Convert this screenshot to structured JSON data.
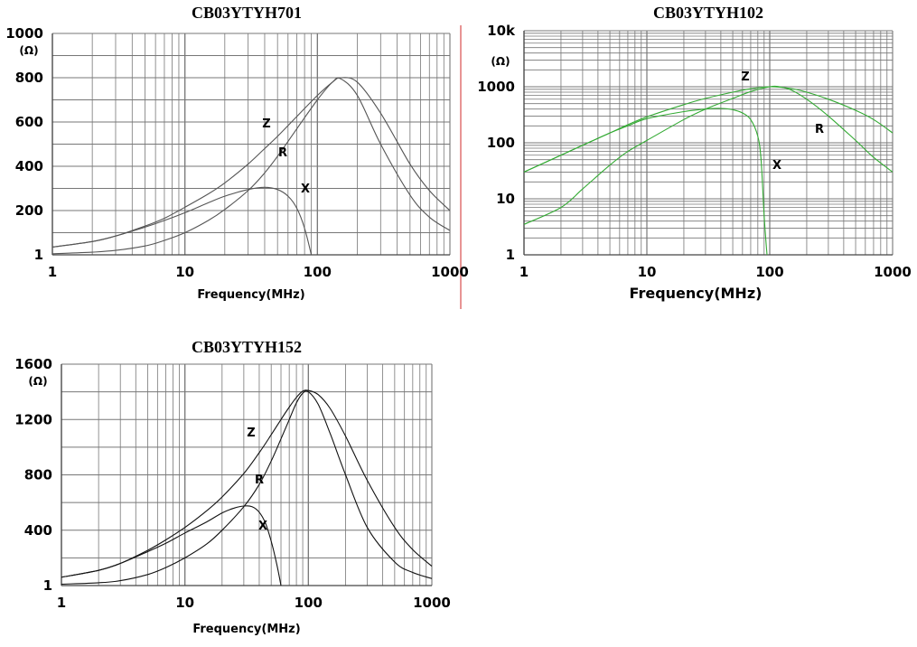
{
  "chart_data": [
    {
      "type": "line",
      "title": "CB03YTYH701",
      "xlabel": "Frequency(MHz)",
      "ylabel_unit": "(Ω)",
      "x_scale": "log",
      "xlim": [
        1,
        1000
      ],
      "xticks": [
        "1",
        "10",
        "100",
        "1000"
      ],
      "y_scale": "linear",
      "ylim": [
        0,
        1000
      ],
      "yticks": [
        {
          "value": 0,
          "label": "1"
        },
        {
          "value": 200,
          "label": "200"
        },
        {
          "value": 400,
          "label": "400"
        },
        {
          "value": 600,
          "label": "600"
        },
        {
          "value": 800,
          "label": "800"
        },
        {
          "value": 1000,
          "label": "1000"
        }
      ],
      "line_color": "#555555",
      "series": [
        {
          "name": "Z",
          "x": [
            1,
            2,
            3,
            5,
            7,
            10,
            15,
            20,
            30,
            40,
            50,
            70,
            100,
            130,
            150,
            200,
            300,
            500,
            700,
            1000
          ],
          "y": [
            35,
            60,
            85,
            130,
            165,
            215,
            275,
            325,
            410,
            480,
            535,
            625,
            720,
            780,
            800,
            780,
            640,
            410,
            290,
            200
          ]
        },
        {
          "name": "R",
          "x": [
            1,
            2,
            3,
            5,
            7,
            10,
            15,
            20,
            30,
            40,
            50,
            70,
            100,
            130,
            150,
            200,
            300,
            500,
            700,
            1000
          ],
          "y": [
            5,
            12,
            20,
            40,
            65,
            100,
            155,
            205,
            290,
            370,
            445,
            570,
            700,
            780,
            795,
            720,
            500,
            270,
            170,
            110
          ]
        },
        {
          "name": "X",
          "x": [
            1,
            2,
            3,
            5,
            7,
            10,
            15,
            20,
            30,
            40,
            50,
            60,
            70,
            80,
            90
          ],
          "y": [
            35,
            60,
            85,
            125,
            155,
            190,
            235,
            265,
            295,
            305,
            295,
            265,
            210,
            120,
            0
          ]
        }
      ]
    },
    {
      "type": "line",
      "title": "CB03YTYH102",
      "xlabel": "Frequency(MHz)",
      "ylabel_unit": "(Ω)",
      "x_scale": "log",
      "xlim": [
        1,
        1000
      ],
      "xticks": [
        "1",
        "10",
        "100",
        "1000"
      ],
      "y_scale": "log",
      "ylim": [
        1,
        10000
      ],
      "yticks": [
        {
          "value": 1,
          "label": "1"
        },
        {
          "value": 10,
          "label": "10"
        },
        {
          "value": 100,
          "label": "100"
        },
        {
          "value": 1000,
          "label": "1000"
        },
        {
          "value": 10000,
          "label": "10k"
        }
      ],
      "line_color": "#33aa33",
      "series": [
        {
          "name": "Z",
          "x": [
            1,
            2,
            3,
            5,
            7,
            10,
            20,
            30,
            50,
            70,
            100,
            150,
            200,
            300,
            500,
            700,
            1000
          ],
          "y": [
            30,
            60,
            90,
            150,
            210,
            290,
            480,
            620,
            800,
            920,
            1000,
            930,
            800,
            600,
            380,
            260,
            150
          ]
        },
        {
          "name": "R",
          "x": [
            1,
            2,
            3,
            5,
            7,
            10,
            20,
            30,
            50,
            70,
            100,
            120,
            150,
            200,
            300,
            500,
            700,
            1000
          ],
          "y": [
            3.5,
            7,
            15,
            40,
            70,
            110,
            260,
            400,
            620,
            820,
            1000,
            1000,
            870,
            600,
            300,
            110,
            55,
            30
          ]
        },
        {
          "name": "X",
          "x": [
            1,
            2,
            3,
            5,
            7,
            10,
            20,
            30,
            40,
            50,
            60,
            70,
            80,
            85,
            90,
            95
          ],
          "y": [
            30,
            60,
            90,
            150,
            200,
            270,
            360,
            400,
            410,
            390,
            340,
            260,
            130,
            50,
            5,
            1
          ]
        }
      ]
    },
    {
      "type": "line",
      "title": "CB03YTYH152",
      "xlabel": "Frequency(MHz)",
      "ylabel_unit": "(Ω)",
      "x_scale": "log",
      "xlim": [
        1,
        1000
      ],
      "xticks": [
        "1",
        "10",
        "100",
        "1000"
      ],
      "y_scale": "linear",
      "ylim": [
        0,
        1600
      ],
      "yticks": [
        {
          "value": 0,
          "label": "1"
        },
        {
          "value": 400,
          "label": "400"
        },
        {
          "value": 800,
          "label": "800"
        },
        {
          "value": 1200,
          "label": "1200"
        },
        {
          "value": 1600,
          "label": "1600"
        }
      ],
      "line_color": "#111111",
      "series": [
        {
          "name": "Z",
          "x": [
            1,
            2,
            3,
            5,
            7,
            10,
            15,
            20,
            30,
            40,
            50,
            60,
            70,
            80,
            90,
            100,
            120,
            150,
            200,
            300,
            500,
            700,
            1000
          ],
          "y": [
            60,
            110,
            160,
            255,
            330,
            420,
            540,
            640,
            810,
            960,
            1090,
            1200,
            1290,
            1360,
            1405,
            1410,
            1380,
            1280,
            1080,
            760,
            420,
            260,
            140
          ]
        },
        {
          "name": "R",
          "x": [
            1,
            2,
            3,
            5,
            7,
            10,
            15,
            20,
            30,
            40,
            50,
            60,
            70,
            80,
            90,
            100,
            120,
            150,
            200,
            300,
            500,
            700,
            1000
          ],
          "y": [
            10,
            20,
            35,
            80,
            130,
            200,
            300,
            400,
            570,
            730,
            900,
            1060,
            1200,
            1320,
            1390,
            1400,
            1310,
            1100,
            800,
            420,
            170,
            95,
            50
          ]
        },
        {
          "name": "X",
          "x": [
            1,
            2,
            3,
            5,
            7,
            10,
            15,
            20,
            25,
            30,
            35,
            40,
            45,
            50,
            55,
            60
          ],
          "y": [
            60,
            110,
            160,
            245,
            305,
            380,
            460,
            525,
            560,
            575,
            570,
            530,
            450,
            320,
            170,
            0
          ]
        }
      ]
    }
  ]
}
